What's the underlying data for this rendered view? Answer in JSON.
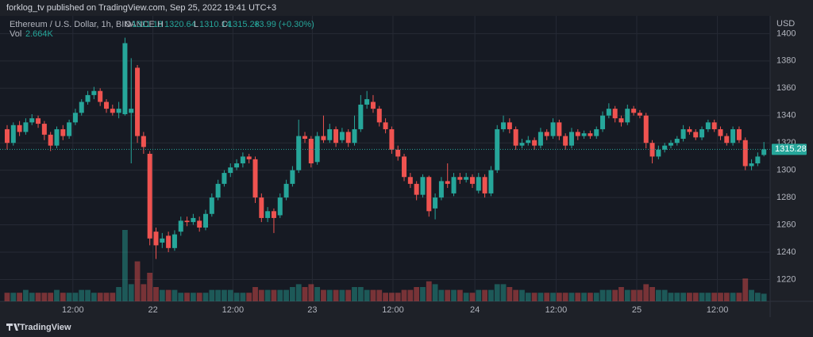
{
  "header": "forklog_tv published on TradingView.com, Sep 25, 2022 19:41 UTC+3",
  "footer": "TradingView",
  "legend": {
    "symbol": "Ethereum / U.S. Dollar, 1h, BINANCE",
    "o_label": "O",
    "open": "1311.18",
    "h_label": "H",
    "high": "1320.64",
    "l_label": "L",
    "low": "1310.14",
    "c_label": "C",
    "close": "1315.28",
    "change": "+3.99 (+0.30%)",
    "vol_label": "Vol",
    "volume": "2.664K"
  },
  "chart_data": {
    "type": "candlestick",
    "currency": "USD",
    "up_color": "#26a69a",
    "down_color": "#ef5350",
    "grid": true,
    "last_price": 1315.28,
    "ylim": [
      1204,
      1413
    ],
    "yticks": [
      1220,
      1240,
      1260,
      1280,
      1300,
      1320,
      1340,
      1360,
      1380,
      1400
    ],
    "xlim": [
      -1.15,
      123
    ],
    "xticks": [
      {
        "value": 10.6,
        "label": "12:00"
      },
      {
        "value": 23.5,
        "label": "22"
      },
      {
        "value": 36.4,
        "label": "12:00"
      },
      {
        "value": 49.2,
        "label": "23"
      },
      {
        "value": 62.2,
        "label": "12:00"
      },
      {
        "value": 75.4,
        "label": "24"
      },
      {
        "value": 88.5,
        "label": "12:00"
      },
      {
        "value": 101.5,
        "label": "25"
      },
      {
        "value": 114.5,
        "label": "12:00"
      }
    ],
    "volume_ylim": [
      0,
      40
    ],
    "open": [
      1330,
      1320,
      1333,
      1328,
      1335,
      1338,
      1334,
      1326,
      1318,
      1330,
      1325,
      1335,
      1342,
      1350,
      1355,
      1358,
      1350,
      1345,
      1342,
      1341,
      1342,
      1375,
      1325,
      1312,
      1255,
      1247,
      1252,
      1243,
      1255,
      1263,
      1262,
      1263,
      1258,
      1268,
      1280,
      1290,
      1298,
      1302,
      1305,
      1310,
      1308,
      1280,
      1265,
      1270,
      1267,
      1280,
      1290,
      1300,
      1325,
      1323,
      1306,
      1325,
      1322,
      1330,
      1322,
      1328,
      1320,
      1330,
      1348,
      1350,
      1345,
      1335,
      1330,
      1315,
      1310,
      1295,
      1290,
      1282,
      1295,
      1272,
      1280,
      1292,
      1283,
      1295,
      1293,
      1295,
      1285,
      1295,
      1283,
      1300,
      1330,
      1335,
      1330,
      1318,
      1320,
      1322,
      1318,
      1328,
      1325,
      1335,
      1325,
      1318,
      1328,
      1325,
      1327,
      1325,
      1330,
      1340,
      1345,
      1338,
      1335,
      1345,
      1342,
      1340,
      1320,
      1310,
      1315,
      1318,
      1320,
      1323,
      1330,
      1328,
      1324,
      1330,
      1335,
      1330,
      1325,
      1320,
      1330,
      1322,
      1303,
      1305,
      1311.18
    ],
    "high": [
      1333,
      1335,
      1336,
      1338,
      1341,
      1340,
      1336,
      1328,
      1332,
      1333,
      1337,
      1345,
      1352,
      1358,
      1361,
      1360,
      1352,
      1348,
      1350,
      1397,
      1382,
      1377,
      1328,
      1314,
      1258,
      1254,
      1255,
      1256,
      1266,
      1266,
      1268,
      1266,
      1271,
      1283,
      1293,
      1300,
      1305,
      1308,
      1313,
      1312,
      1310,
      1283,
      1273,
      1272,
      1283,
      1293,
      1303,
      1337,
      1328,
      1325,
      1328,
      1340,
      1334,
      1332,
      1331,
      1330,
      1340,
      1355,
      1358,
      1355,
      1347,
      1338,
      1332,
      1318,
      1312,
      1298,
      1292,
      1297,
      1296,
      1283,
      1295,
      1305,
      1298,
      1298,
      1298,
      1297,
      1298,
      1297,
      1303,
      1333,
      1340,
      1338,
      1332,
      1323,
      1325,
      1324,
      1331,
      1330,
      1338,
      1337,
      1327,
      1331,
      1330,
      1329,
      1329,
      1332,
      1343,
      1349,
      1347,
      1340,
      1348,
      1347,
      1344,
      1342,
      1322,
      1318,
      1320,
      1322,
      1325,
      1333,
      1332,
      1330,
      1332,
      1337,
      1337,
      1332,
      1327,
      1332,
      1332,
      1324,
      1308,
      1313,
      1320.64
    ],
    "low": [
      1315,
      1318,
      1325,
      1326,
      1333,
      1331,
      1322,
      1314,
      1316,
      1322,
      1323,
      1333,
      1340,
      1348,
      1352,
      1347,
      1342,
      1340,
      1338,
      1340,
      1305,
      1320,
      1312,
      1245,
      1235,
      1243,
      1240,
      1241,
      1252,
      1259,
      1260,
      1255,
      1256,
      1266,
      1278,
      1288,
      1295,
      1300,
      1302,
      1305,
      1276,
      1262,
      1262,
      1254,
      1265,
      1278,
      1288,
      1298,
      1320,
      1302,
      1304,
      1320,
      1320,
      1317,
      1320,
      1317,
      1318,
      1328,
      1345,
      1342,
      1332,
      1327,
      1312,
      1307,
      1292,
      1287,
      1278,
      1280,
      1266,
      1264,
      1278,
      1287,
      1281,
      1290,
      1291,
      1287,
      1283,
      1280,
      1281,
      1298,
      1328,
      1327,
      1315,
      1316,
      1318,
      1315,
      1316,
      1322,
      1323,
      1322,
      1315,
      1316,
      1322,
      1323,
      1323,
      1323,
      1328,
      1338,
      1335,
      1332,
      1333,
      1340,
      1338,
      1316,
      1305,
      1308,
      1313,
      1316,
      1318,
      1321,
      1326,
      1322,
      1322,
      1328,
      1328,
      1322,
      1318,
      1318,
      1320,
      1300,
      1300,
      1303,
      1310.14
    ],
    "close": [
      1320,
      1333,
      1328,
      1335,
      1338,
      1334,
      1326,
      1318,
      1330,
      1325,
      1335,
      1342,
      1350,
      1355,
      1358,
      1350,
      1345,
      1342,
      1345,
      1393,
      1345,
      1325,
      1317,
      1250,
      1245,
      1250,
      1243,
      1253,
      1263,
      1262,
      1265,
      1258,
      1268,
      1280,
      1290,
      1298,
      1302,
      1305,
      1310,
      1308,
      1280,
      1265,
      1270,
      1265,
      1280,
      1290,
      1300,
      1325,
      1323,
      1305,
      1325,
      1322,
      1330,
      1320,
      1328,
      1320,
      1330,
      1348,
      1352,
      1345,
      1335,
      1330,
      1315,
      1310,
      1295,
      1290,
      1282,
      1295,
      1270,
      1280,
      1292,
      1290,
      1295,
      1293,
      1295,
      1290,
      1295,
      1283,
      1300,
      1330,
      1335,
      1330,
      1318,
      1320,
      1322,
      1318,
      1328,
      1325,
      1335,
      1325,
      1318,
      1328,
      1325,
      1327,
      1325,
      1330,
      1340,
      1345,
      1338,
      1335,
      1345,
      1342,
      1340,
      1320,
      1310,
      1315,
      1318,
      1320,
      1323,
      1330,
      1328,
      1324,
      1330,
      1335,
      1330,
      1325,
      1320,
      1330,
      1322,
      1303,
      1305,
      1310,
      1315.28
    ],
    "volume": [
      3,
      3,
      3,
      4,
      3,
      3,
      3,
      3,
      4,
      3,
      3,
      3,
      4,
      4,
      3,
      3,
      3,
      3,
      5,
      25,
      6,
      14,
      6,
      10,
      5,
      4,
      4,
      4,
      3,
      3,
      3,
      3,
      3,
      4,
      4,
      4,
      4,
      3,
      3,
      3,
      5,
      4,
      4,
      4,
      4,
      4,
      5,
      6,
      5,
      6,
      5,
      4,
      4,
      4,
      4,
      4,
      5,
      5,
      4,
      4,
      4,
      3,
      3,
      3,
      4,
      4,
      5,
      5,
      7,
      6,
      4,
      4,
      4,
      4,
      3,
      3,
      4,
      4,
      4,
      6,
      6,
      5,
      4,
      4,
      3,
      3,
      3,
      3,
      3,
      3,
      3,
      3,
      3,
      3,
      3,
      3,
      4,
      4,
      4,
      5,
      4,
      4,
      4,
      6,
      5,
      4,
      4,
      3,
      3,
      3,
      3,
      3,
      3,
      3,
      3,
      3,
      3,
      3,
      3,
      8,
      4,
      3,
      2.664
    ]
  }
}
